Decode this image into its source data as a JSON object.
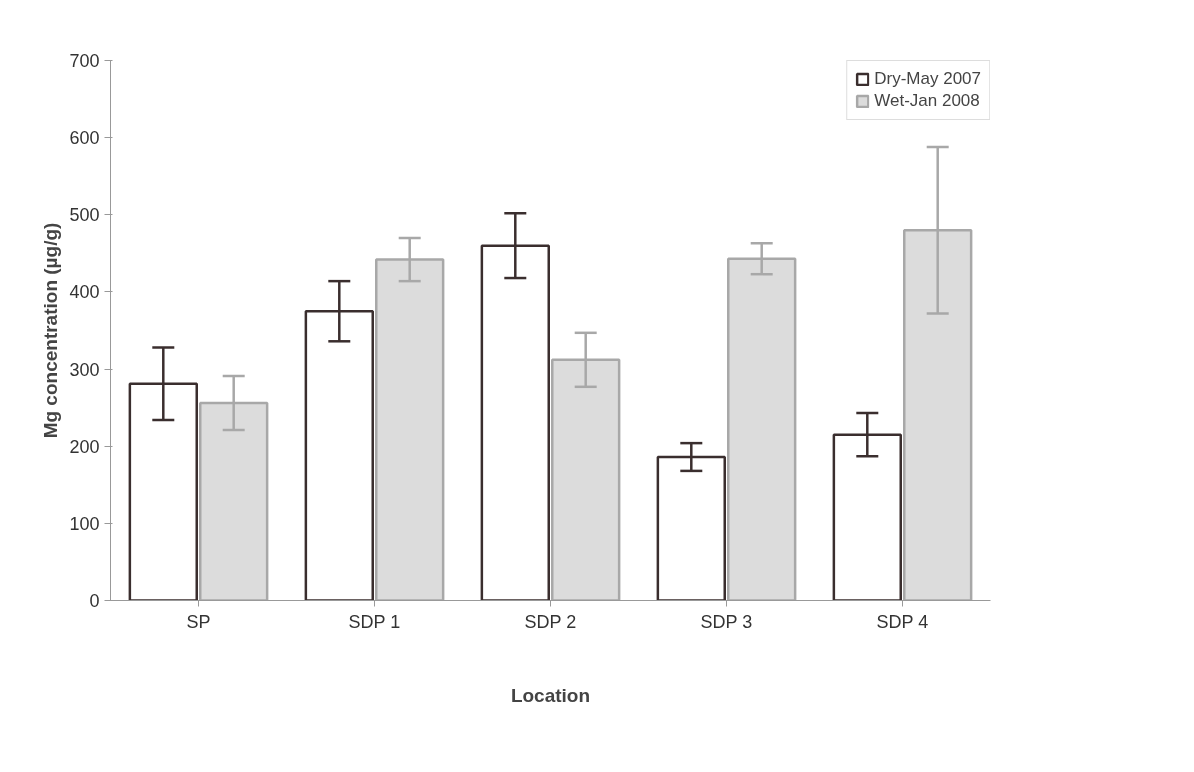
{
  "chart_data": {
    "type": "bar",
    "xlabel": "Location",
    "ylabel": "Mg concentration (µg/g)",
    "categories": [
      "SP",
      "SDP 1",
      "SDP 2",
      "SDP 3",
      "SDP 4"
    ],
    "series": [
      {
        "name": "Dry-May 2007",
        "color": "#ffffff",
        "values": [
          281,
          375,
          460,
          186,
          215
        ],
        "errors": [
          47,
          39,
          42,
          18,
          28
        ]
      },
      {
        "name": "Wet-Jan 2008",
        "color": "#dcdcdc",
        "values": [
          256,
          442,
          312,
          443,
          480
        ],
        "errors": [
          35,
          28,
          35,
          20,
          108
        ]
      }
    ],
    "ylim": [
      0,
      700
    ],
    "yticks": [
      0,
      100,
      200,
      300,
      400,
      500,
      600,
      700
    ],
    "grid": false,
    "legend": "top right"
  }
}
